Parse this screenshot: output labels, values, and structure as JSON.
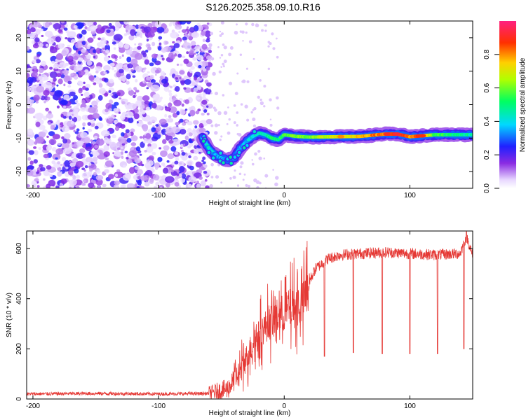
{
  "title": "S126.2025.358.09.10.R16",
  "chart_data": [
    {
      "type": "heatmap",
      "xlabel": "Height of straight line (km)",
      "ylabel": "Frequency (Hz)",
      "xlim": [
        -205,
        150
      ],
      "ylim": [
        -25,
        25
      ],
      "x_ticks": [
        -200,
        -100,
        0,
        100
      ],
      "y_ticks": [
        -20,
        -10,
        0,
        10,
        20
      ],
      "colorbar": {
        "label": "Normalized spectral amplitude",
        "range": [
          0,
          1
        ],
        "ticks": [
          "0.0",
          "0.2",
          "0.4",
          "0.6",
          "0.8"
        ]
      },
      "noise_region": {
        "x": [
          -205,
          -65
        ],
        "description_level": "low amplitude scattered speckle"
      },
      "ridge": {
        "x": [
          -65,
          -60,
          -55,
          -50,
          -45,
          -40,
          -35,
          -30,
          -25,
          -20,
          -15,
          -10,
          -5,
          0,
          10,
          20,
          40,
          60,
          80,
          90,
          100,
          110,
          120,
          150
        ],
        "frequency": [
          -10,
          -13,
          -15,
          -16,
          -16.5,
          -16,
          -13,
          -11,
          -9.5,
          -8.5,
          -9,
          -10,
          -10.5,
          -9,
          -9.5,
          -9.7,
          -9.6,
          -9.5,
          -8.8,
          -8.8,
          -9.6,
          -9.3,
          -9.0,
          -9.0
        ],
        "amplitude": [
          0.35,
          0.4,
          0.35,
          0.35,
          0.3,
          0.3,
          0.35,
          0.35,
          0.4,
          0.45,
          0.45,
          0.5,
          0.5,
          0.55,
          0.6,
          0.6,
          0.7,
          0.75,
          0.85,
          0.9,
          0.8,
          0.85,
          0.55,
          0.45
        ]
      }
    },
    {
      "type": "line",
      "xlabel": "Height of straight line (km)",
      "ylabel": "SNR (10 * v/v)",
      "xlim": [
        -205,
        150
      ],
      "ylim": [
        0,
        670
      ],
      "x_ticks": [
        -200,
        -100,
        0,
        100
      ],
      "y_ticks": [
        0,
        200,
        400,
        600
      ],
      "series": [
        {
          "color": "#e53935",
          "x": [
            -205,
            -150,
            -100,
            -60,
            -45,
            -35,
            -25,
            -15,
            -5,
            5,
            15,
            20,
            25,
            35,
            45,
            60,
            80,
            100,
            120,
            140,
            145,
            150
          ],
          "y": [
            20,
            22,
            20,
            22,
            40,
            110,
            220,
            290,
            330,
            360,
            380,
            470,
            520,
            560,
            575,
            580,
            585,
            580,
            575,
            580,
            650,
            570
          ],
          "dips": [
            {
              "x": 32,
              "y": 170
            },
            {
              "x": 55,
              "y": 185
            },
            {
              "x": 78,
              "y": 180
            },
            {
              "x": 100,
              "y": 180
            },
            {
              "x": 122,
              "y": 180
            },
            {
              "x": 143,
              "y": 200
            }
          ]
        }
      ]
    }
  ]
}
